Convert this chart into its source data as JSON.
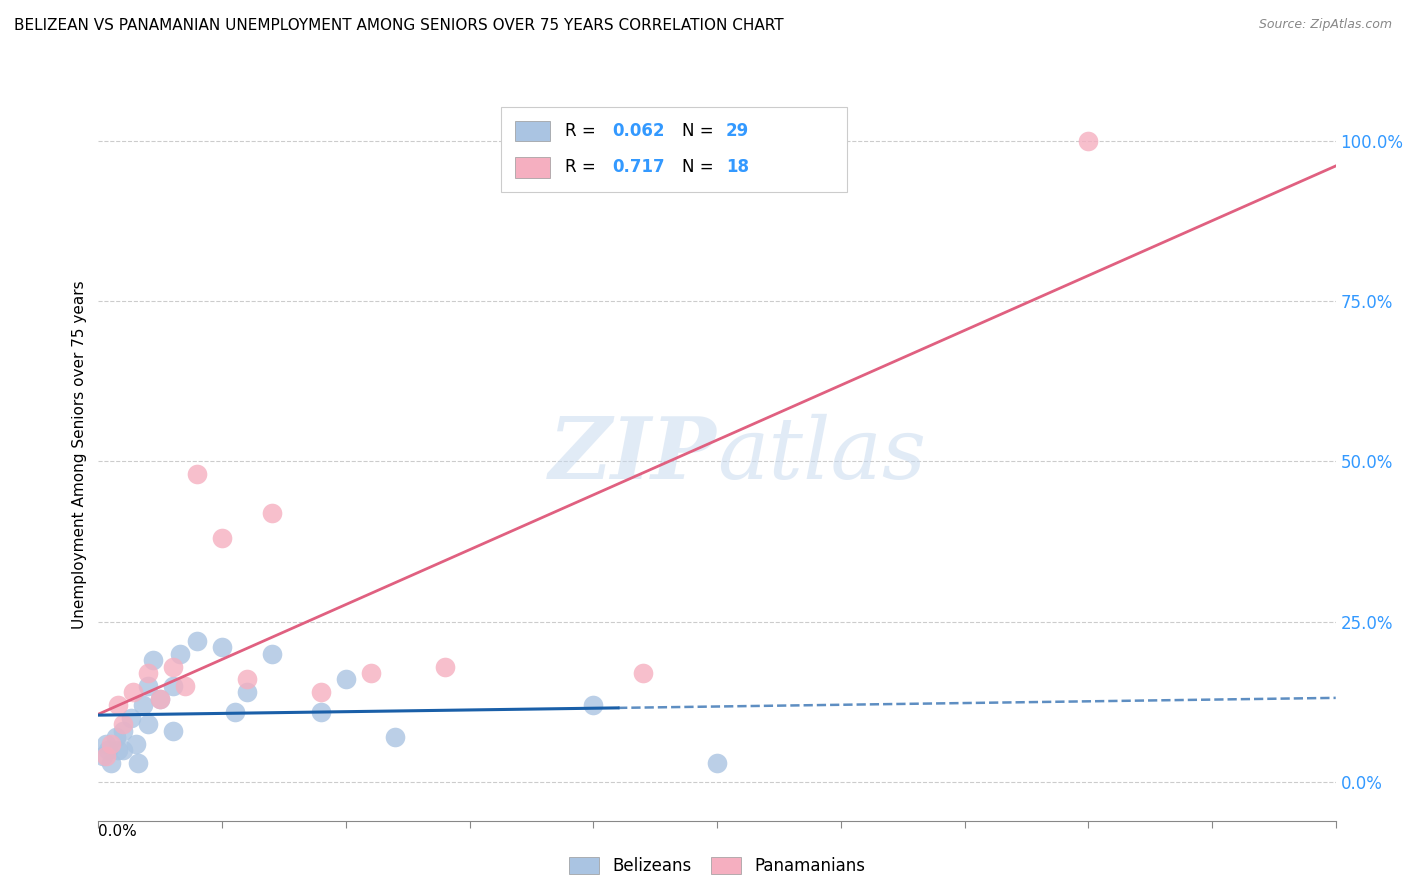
{
  "title": "BELIZEAN VS PANAMANIAN UNEMPLOYMENT AMONG SENIORS OVER 75 YEARS CORRELATION CHART",
  "source": "Source: ZipAtlas.com",
  "ylabel": "Unemployment Among Seniors over 75 years",
  "ytick_labels": [
    "0.0%",
    "25.0%",
    "50.0%",
    "75.0%",
    "100.0%"
  ],
  "ytick_values": [
    0.0,
    0.25,
    0.5,
    0.75,
    1.0
  ],
  "xmin": 0.0,
  "xmax": 0.05,
  "ymin": -0.06,
  "ymax": 1.08,
  "belizean_color": "#aac4e2",
  "panamanian_color": "#f5afc0",
  "belizean_line_color": "#1a5fa8",
  "panamanian_line_color": "#e06080",
  "belizean_R": 0.062,
  "belizean_N": 29,
  "panamanian_R": 0.717,
  "panamanian_N": 18,
  "watermark_zip": "ZIP",
  "watermark_atlas": "atlas",
  "legend_label_belizean": "Belizeans",
  "legend_label_panamanian": "Panamanians",
  "belizean_x": [
    0.0002,
    0.0003,
    0.0004,
    0.0005,
    0.0007,
    0.0008,
    0.001,
    0.001,
    0.0013,
    0.0015,
    0.0016,
    0.0018,
    0.002,
    0.002,
    0.0022,
    0.0025,
    0.003,
    0.003,
    0.0033,
    0.004,
    0.005,
    0.0055,
    0.006,
    0.007,
    0.009,
    0.01,
    0.012,
    0.02,
    0.025
  ],
  "belizean_y": [
    0.04,
    0.06,
    0.05,
    0.03,
    0.07,
    0.05,
    0.08,
    0.05,
    0.1,
    0.06,
    0.03,
    0.12,
    0.15,
    0.09,
    0.19,
    0.13,
    0.08,
    0.15,
    0.2,
    0.22,
    0.21,
    0.11,
    0.14,
    0.2,
    0.11,
    0.16,
    0.07,
    0.12,
    0.03
  ],
  "panamanian_x": [
    0.0003,
    0.0005,
    0.0008,
    0.001,
    0.0014,
    0.002,
    0.0025,
    0.003,
    0.0035,
    0.004,
    0.005,
    0.006,
    0.007,
    0.009,
    0.011,
    0.014,
    0.022,
    0.04
  ],
  "panamanian_y": [
    0.04,
    0.06,
    0.12,
    0.09,
    0.14,
    0.17,
    0.13,
    0.18,
    0.15,
    0.48,
    0.38,
    0.16,
    0.42,
    0.14,
    0.17,
    0.18,
    0.17,
    1.0
  ],
  "blue_line_solid_end": 0.021,
  "blue_line_dash_start": 0.021
}
